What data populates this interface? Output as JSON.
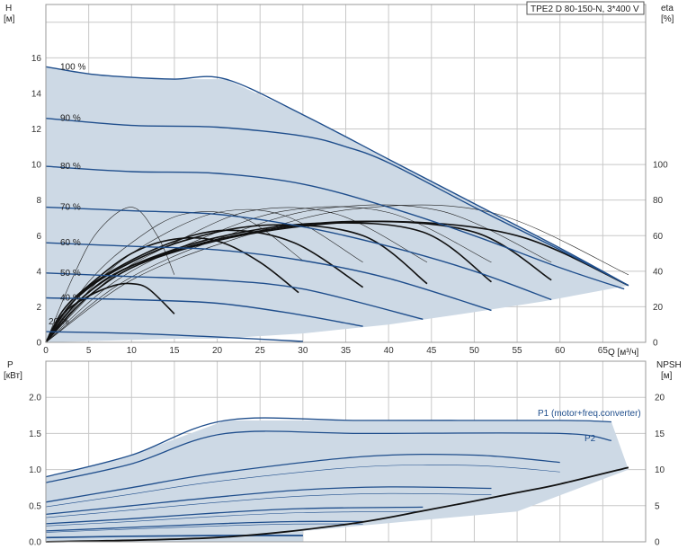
{
  "chart_data": [
    {
      "type": "line",
      "title": "TPE2 D 80-150-N, 3*400 V",
      "xlabel": "Q [м³/ч]",
      "ylabel": "H",
      "ylabel_unit": "[м]",
      "y2label": "eta",
      "y2label_unit": "[%]",
      "xlim": [
        0,
        70
      ],
      "ylim": [
        0,
        19
      ],
      "y2lim": [
        0,
        190
      ],
      "x_ticks": [
        0,
        5,
        10,
        15,
        20,
        25,
        30,
        35,
        40,
        45,
        50,
        55,
        60,
        65
      ],
      "y_ticks": [
        0,
        2,
        4,
        6,
        8,
        10,
        12,
        14,
        16
      ],
      "y2_ticks": [
        0,
        20,
        40,
        60,
        80,
        100
      ],
      "grid": true,
      "operating_area_color": "#cdd9e5",
      "curve_color": "#1f4e8c",
      "eta_color": "#111111",
      "series": [
        {
          "label": "100 %",
          "x": [
            0,
            5,
            10,
            15,
            21,
            30,
            40,
            50,
            60,
            68
          ],
          "y": [
            15.5,
            15.1,
            14.9,
            14.8,
            14.8,
            12.8,
            10.3,
            7.8,
            5.3,
            3.2
          ]
        },
        {
          "label": "90 %",
          "x": [
            0,
            10,
            20,
            30,
            35,
            40,
            50,
            60,
            68
          ],
          "y": [
            12.6,
            12.2,
            12.1,
            11.6,
            11.0,
            10.1,
            7.6,
            5.2,
            3.2
          ]
        },
        {
          "label": "80 %",
          "x": [
            0,
            10,
            20,
            30,
            40,
            50,
            60,
            67.5
          ],
          "y": [
            9.9,
            9.6,
            9.5,
            8.9,
            7.6,
            6.0,
            4.2,
            3.0
          ]
        },
        {
          "label": "70 %",
          "x": [
            0,
            10,
            20,
            30,
            40,
            50,
            59
          ],
          "y": [
            7.6,
            7.4,
            7.2,
            6.5,
            5.4,
            4.0,
            2.4
          ]
        },
        {
          "label": "60 %",
          "x": [
            0,
            10,
            20,
            30,
            40,
            52
          ],
          "y": [
            5.6,
            5.4,
            5.2,
            4.6,
            3.6,
            1.8
          ]
        },
        {
          "label": "50 %",
          "x": [
            0,
            10,
            20,
            30,
            44
          ],
          "y": [
            3.9,
            3.7,
            3.5,
            3.0,
            1.3
          ]
        },
        {
          "label": "40 %",
          "x": [
            0,
            10,
            20,
            29,
            37
          ],
          "y": [
            2.5,
            2.4,
            2.2,
            1.6,
            0.9
          ]
        },
        {
          "label": "20 %",
          "x": [
            0,
            10,
            20,
            30
          ],
          "y": [
            0.6,
            0.5,
            0.3,
            0.05
          ]
        }
      ],
      "eta_curves": [
        {
          "x": [
            0,
            2,
            5,
            8,
            10,
            12,
            15
          ],
          "y": [
            0,
            16,
            26,
            32,
            33,
            30,
            16
          ]
        },
        {
          "x": [
            0,
            2,
            5,
            10,
            15,
            20,
            25,
            29.5
          ],
          "y": [
            0,
            18,
            32,
            50,
            58,
            57,
            45,
            28
          ]
        },
        {
          "x": [
            0,
            3,
            7,
            14,
            21,
            29,
            37
          ],
          "y": [
            0,
            22,
            38,
            55,
            63,
            56,
            31
          ]
        },
        {
          "x": [
            0,
            3,
            8,
            16,
            26,
            37,
            44.5
          ],
          "y": [
            0,
            22,
            40,
            57,
            66,
            60,
            33
          ]
        },
        {
          "x": [
            0,
            4,
            10,
            20,
            32,
            44,
            52
          ],
          "y": [
            0,
            24,
            43,
            59,
            67,
            62,
            34
          ]
        },
        {
          "x": [
            0,
            4,
            10,
            22,
            36,
            50,
            59
          ],
          "y": [
            0,
            24,
            43,
            60,
            68,
            62,
            35
          ]
        },
        {
          "x": [
            0,
            5,
            12,
            25,
            40,
            55,
            68
          ],
          "y": [
            0,
            26,
            46,
            62,
            68,
            60,
            32
          ]
        }
      ],
      "eta_curves_thin": [
        {
          "x": [
            0,
            3,
            6,
            10,
            13,
            15
          ],
          "y": [
            0,
            35,
            62,
            76,
            60,
            38
          ]
        },
        {
          "x": [
            0,
            5,
            10,
            16,
            23,
            30
          ],
          "y": [
            0,
            34,
            56,
            72,
            70,
            46
          ]
        },
        {
          "x": [
            0,
            6,
            12,
            20,
            28,
            37
          ],
          "y": [
            0,
            34,
            56,
            73,
            71,
            45
          ]
        },
        {
          "x": [
            0,
            7,
            15,
            24,
            34,
            44.5
          ],
          "y": [
            0,
            34,
            56,
            74,
            72,
            45
          ]
        },
        {
          "x": [
            0,
            8,
            17,
            28,
            40,
            52
          ],
          "y": [
            0,
            34,
            56,
            74,
            73,
            45
          ]
        },
        {
          "x": [
            0,
            9,
            20,
            32,
            46,
            59
          ],
          "y": [
            0,
            34,
            58,
            75,
            74,
            45
          ]
        },
        {
          "x": [
            0,
            10,
            22,
            36,
            52,
            68
          ],
          "y": [
            0,
            35,
            58,
            75,
            73,
            38
          ]
        }
      ],
      "operating_area": {
        "x": [
          0,
          21,
          35,
          45,
          55,
          68,
          58,
          50,
          40,
          30,
          20,
          15
        ],
        "y": [
          15.5,
          14.8,
          11.0,
          9.1,
          6.9,
          3.1,
          2.3,
          1.7,
          1.0,
          0.5,
          0.2,
          0.2
        ]
      }
    },
    {
      "type": "line",
      "ylabel": "P",
      "ylabel_unit": "[кВт]",
      "y2label": "NPSH",
      "y2label_unit": "[м]",
      "xlim": [
        0,
        70
      ],
      "ylim": [
        0,
        2.5
      ],
      "y2lim": [
        0,
        25
      ],
      "y_ticks": [
        0.0,
        0.5,
        1.0,
        1.5,
        2.0
      ],
      "y2_ticks": [
        0,
        5,
        10,
        15,
        20
      ],
      "grid": true,
      "series": [
        {
          "name": "P1 (motor+freq.converter)",
          "x": [
            0,
            10,
            21,
            37,
            60,
            66
          ],
          "y": [
            0.9,
            1.2,
            1.68,
            1.68,
            1.68,
            1.66
          ]
        },
        {
          "name": "P2",
          "x": [
            0,
            10,
            21,
            37,
            60,
            66
          ],
          "y": [
            0.82,
            1.08,
            1.5,
            1.5,
            1.5,
            1.4
          ]
        }
      ],
      "power_curves": [
        {
          "x": [
            0,
            10,
            20,
            37,
            50,
            60
          ],
          "y": [
            0.55,
            0.75,
            0.95,
            1.18,
            1.2,
            1.1
          ]
        },
        {
          "x": [
            0,
            10,
            20,
            30,
            40,
            52
          ],
          "y": [
            0.38,
            0.5,
            0.62,
            0.72,
            0.76,
            0.74
          ]
        },
        {
          "x": [
            0,
            10,
            20,
            30,
            44
          ],
          "y": [
            0.25,
            0.32,
            0.4,
            0.46,
            0.48
          ]
        },
        {
          "x": [
            0,
            10,
            20,
            29,
            37
          ],
          "y": [
            0.15,
            0.2,
            0.25,
            0.28,
            0.28
          ]
        },
        {
          "x": [
            0,
            10,
            20,
            30
          ],
          "y": [
            0.06,
            0.08,
            0.09,
            0.09
          ]
        }
      ],
      "npsh_curve": {
        "x": [
          0,
          20,
          35,
          45,
          55,
          60,
          68
        ],
        "y": [
          0,
          0.6,
          2.4,
          4.5,
          6.8,
          8.0,
          10.3
        ]
      }
    }
  ]
}
